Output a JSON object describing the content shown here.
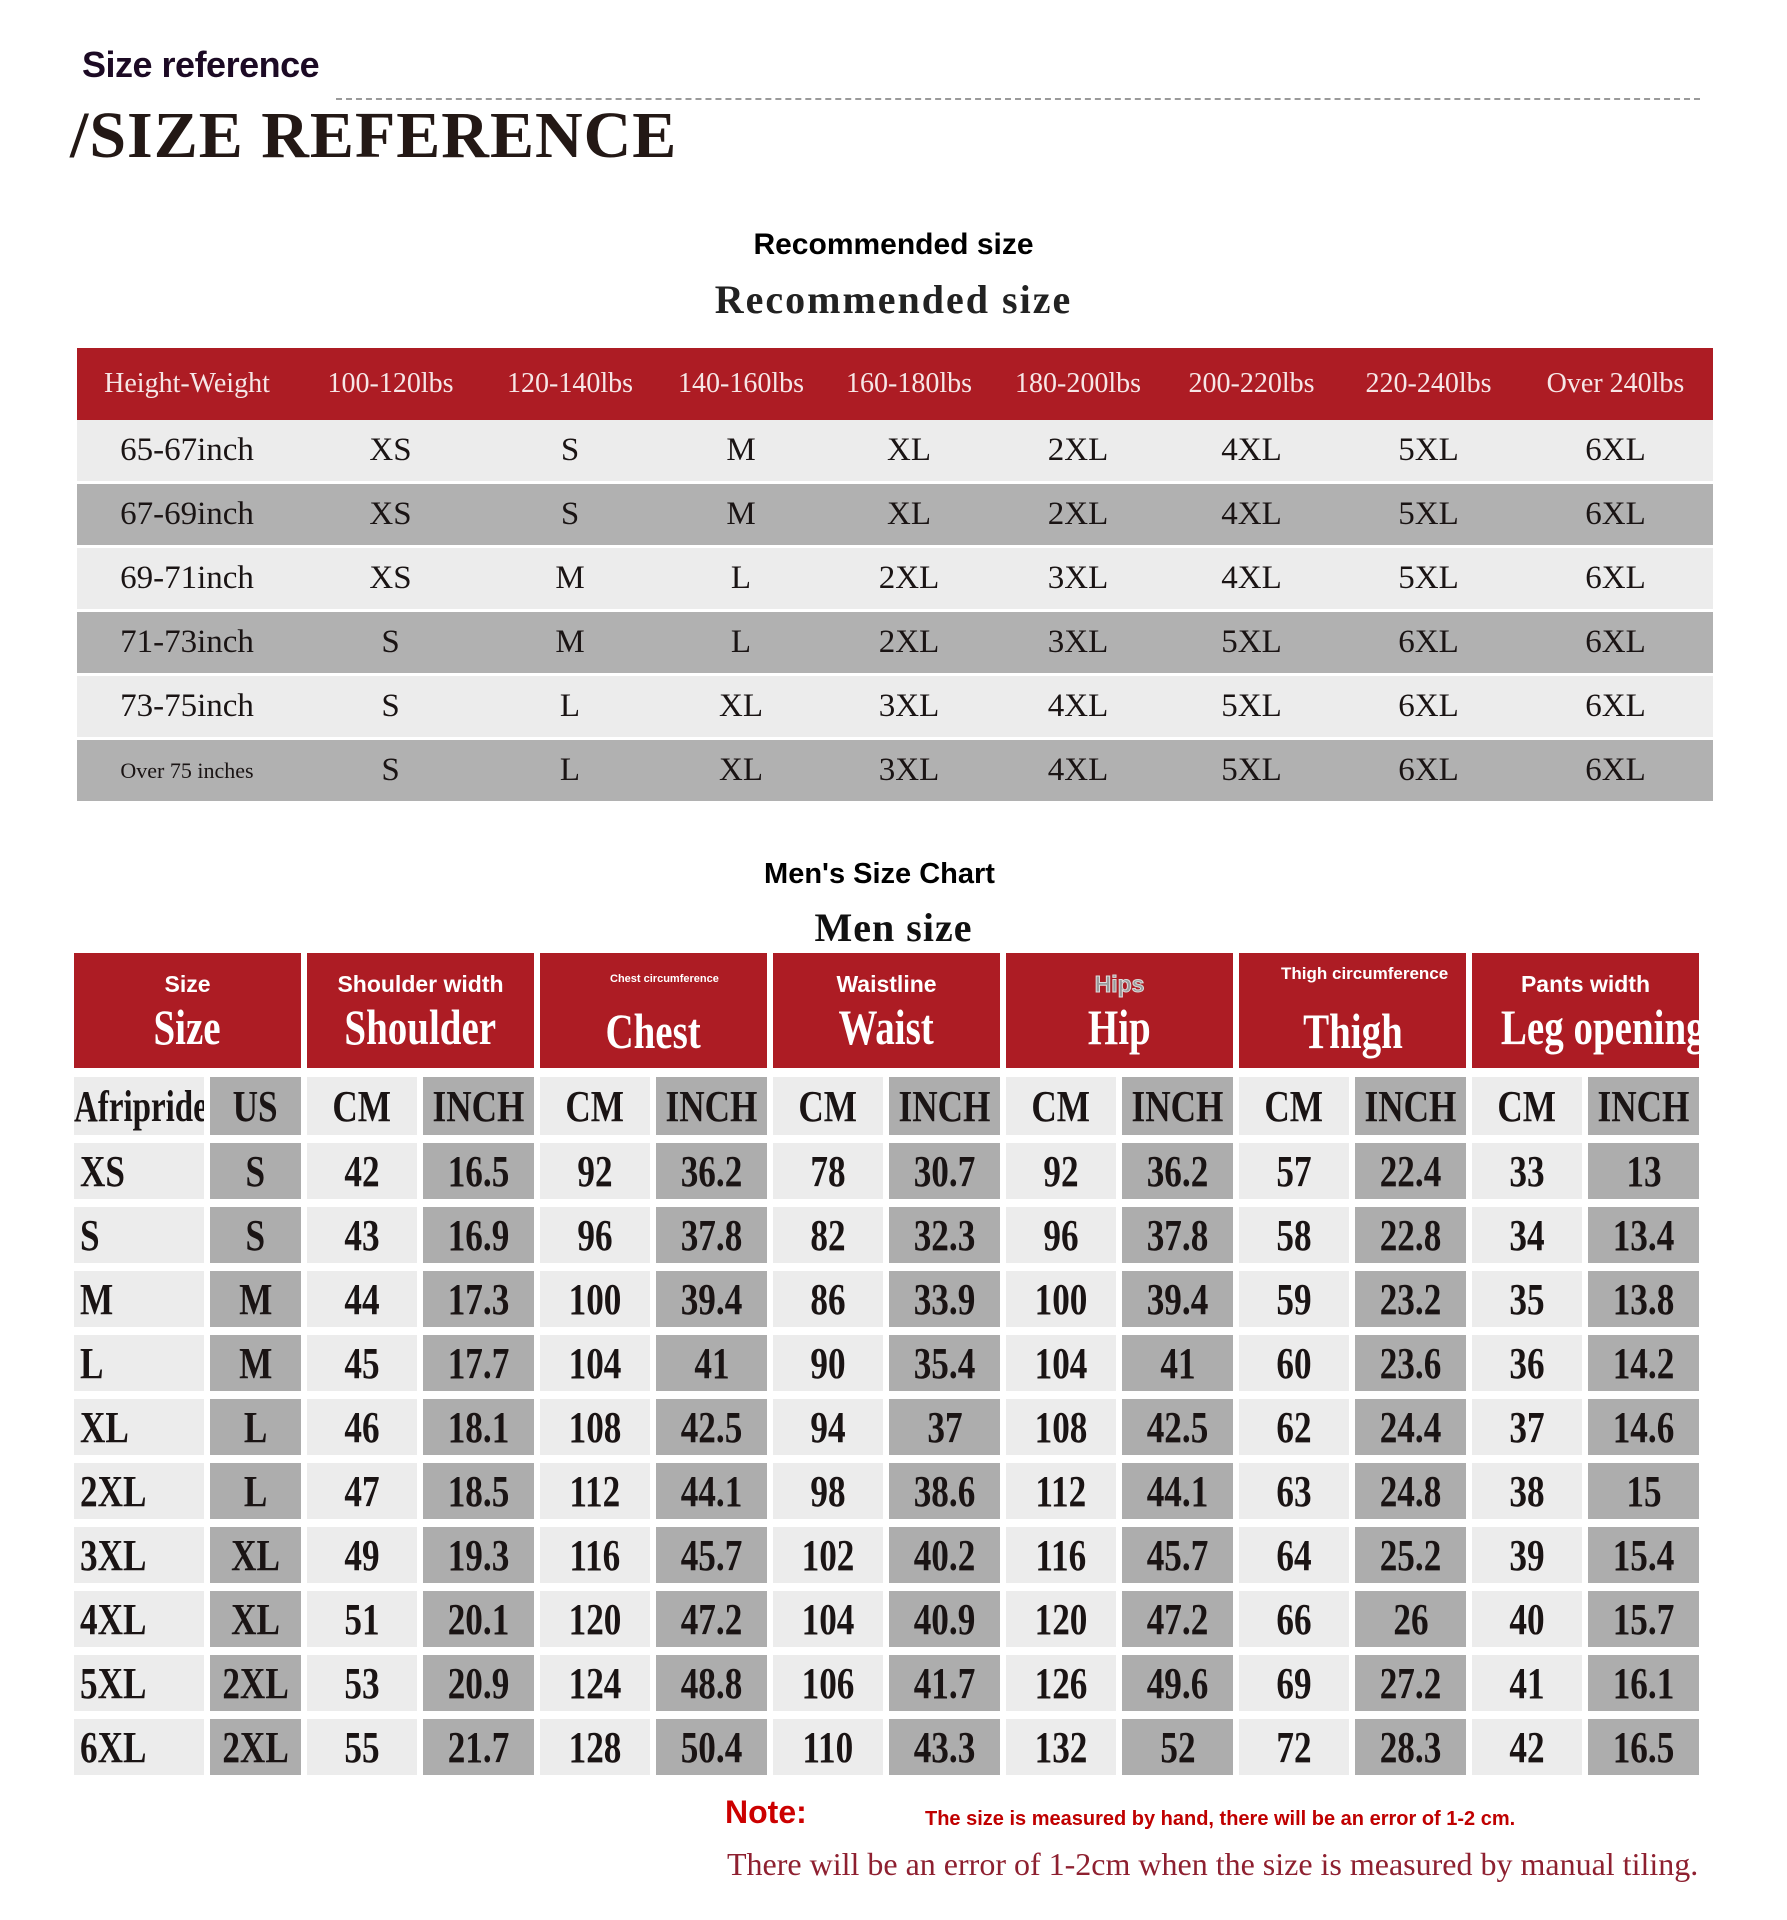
{
  "header": {
    "title_small": "Size reference",
    "title_big": "/SIZE REFERENCE"
  },
  "colors": {
    "accent_red": "#ad1c24",
    "row_light": "#ececec",
    "row_dark": "#b1b1b1",
    "note_red": "#cc0000"
  },
  "recommended": {
    "title_sans": "Recommended size",
    "title_serif": "Recommended size",
    "headers": [
      "Height-Weight",
      "100-120lbs",
      "120-140lbs",
      "140-160lbs",
      "160-180lbs",
      "180-200lbs",
      "200-220lbs",
      "220-240lbs",
      "Over  240lbs"
    ],
    "rows": [
      [
        "65-67inch",
        "XS",
        "S",
        "M",
        "XL",
        "2XL",
        "4XL",
        "5XL",
        "6XL"
      ],
      [
        "67-69inch",
        "XS",
        "S",
        "M",
        "XL",
        "2XL",
        "4XL",
        "5XL",
        "6XL"
      ],
      [
        "69-71inch",
        "XS",
        "M",
        "L",
        "2XL",
        "3XL",
        "4XL",
        "5XL",
        "6XL"
      ],
      [
        "71-73inch",
        "S",
        "M",
        "L",
        "2XL",
        "3XL",
        "5XL",
        "6XL",
        "6XL"
      ],
      [
        "73-75inch",
        "S",
        "L",
        "XL",
        "3XL",
        "4XL",
        "5XL",
        "6XL",
        "6XL"
      ],
      [
        "Over  75  inches",
        "S",
        "L",
        "XL",
        "3XL",
        "4XL",
        "5XL",
        "6XL",
        "6XL"
      ]
    ]
  },
  "mens": {
    "title_sans": "Men's Size Chart",
    "title_serif": "Men size",
    "groups": [
      {
        "sub": "Size",
        "main": "Size"
      },
      {
        "sub": "Shoulder width",
        "main": "Shoulder"
      },
      {
        "sub": "Chest circumference",
        "main": "Chest"
      },
      {
        "sub": "Waistline",
        "main": "Waist"
      },
      {
        "sub": "Hips",
        "main": "Hip"
      },
      {
        "sub": "Thigh circumference",
        "main": "Thigh"
      },
      {
        "sub": "Pants width",
        "main": "Leg opening"
      }
    ],
    "units": [
      "Afripride",
      "US",
      "CM",
      "INCH",
      "CM",
      "INCH",
      "CM",
      "INCH",
      "CM",
      "INCH",
      "CM",
      "INCH",
      "CM",
      "INCH"
    ],
    "rows": [
      [
        "XS",
        "S",
        "42",
        "16.5",
        "92",
        "36.2",
        "78",
        "30.7",
        "92",
        "36.2",
        "57",
        "22.4",
        "33",
        "13"
      ],
      [
        "S",
        "S",
        "43",
        "16.9",
        "96",
        "37.8",
        "82",
        "32.3",
        "96",
        "37.8",
        "58",
        "22.8",
        "34",
        "13.4"
      ],
      [
        "M",
        "M",
        "44",
        "17.3",
        "100",
        "39.4",
        "86",
        "33.9",
        "100",
        "39.4",
        "59",
        "23.2",
        "35",
        "13.8"
      ],
      [
        "L",
        "M",
        "45",
        "17.7",
        "104",
        "41",
        "90",
        "35.4",
        "104",
        "41",
        "60",
        "23.6",
        "36",
        "14.2"
      ],
      [
        "XL",
        "L",
        "46",
        "18.1",
        "108",
        "42.5",
        "94",
        "37",
        "108",
        "42.5",
        "62",
        "24.4",
        "37",
        "14.6"
      ],
      [
        "2XL",
        "L",
        "47",
        "18.5",
        "112",
        "44.1",
        "98",
        "38.6",
        "112",
        "44.1",
        "63",
        "24.8",
        "38",
        "15"
      ],
      [
        "3XL",
        "XL",
        "49",
        "19.3",
        "116",
        "45.7",
        "102",
        "40.2",
        "116",
        "45.7",
        "64",
        "25.2",
        "39",
        "15.4"
      ],
      [
        "4XL",
        "XL",
        "51",
        "20.1",
        "120",
        "47.2",
        "104",
        "40.9",
        "120",
        "47.2",
        "66",
        "26",
        "40",
        "15.7"
      ],
      [
        "5XL",
        "2XL",
        "53",
        "20.9",
        "124",
        "48.8",
        "106",
        "41.7",
        "126",
        "49.6",
        "69",
        "27.2",
        "41",
        "16.1"
      ],
      [
        "6XL",
        "2XL",
        "55",
        "21.7",
        "128",
        "50.4",
        "110",
        "43.3",
        "132",
        "52",
        "72",
        "28.3",
        "42",
        "16.5"
      ]
    ]
  },
  "note": {
    "label": "Note:",
    "text_small": "The size is measured by hand, there will be an error of 1-2 cm.",
    "text_serif": "There will be an error of 1-2cm when the size is measured by manual tiling."
  }
}
